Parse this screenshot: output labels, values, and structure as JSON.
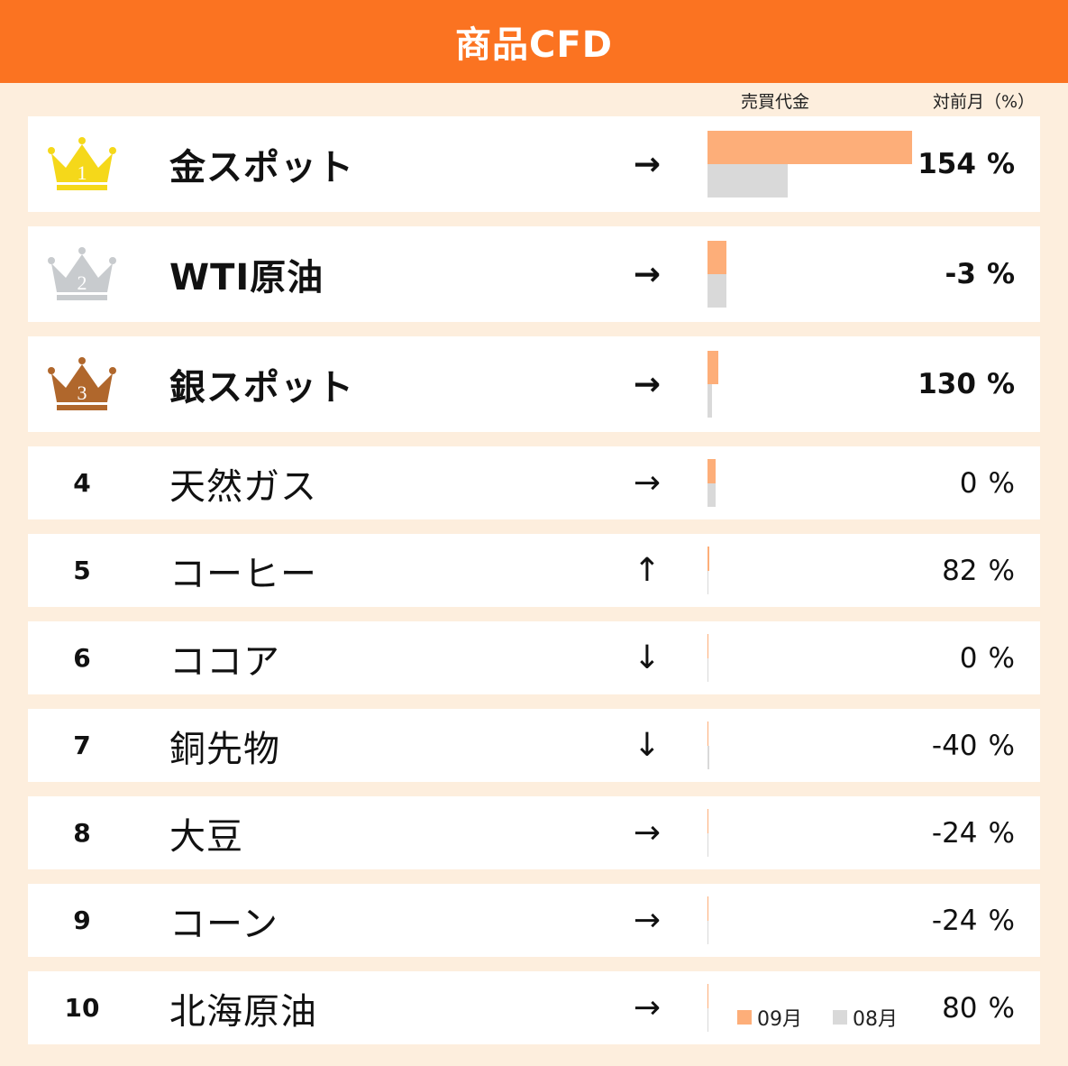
{
  "header": {
    "title": "商品CFD"
  },
  "columns": {
    "volume": "売買代金",
    "change": "対前月（%）"
  },
  "legend": {
    "current": "09月",
    "previous": "08月"
  },
  "colors": {
    "header": "#fb7321",
    "current_bar": "#fdae79",
    "previous_bar": "#d9d9d9",
    "gold": "#f5d81a",
    "silver": "#c8cbce",
    "bronze": "#b0672c"
  },
  "unit": "%",
  "rows": [
    {
      "rank": "1",
      "crown": "gold",
      "name": "金スポット",
      "arrow": "→",
      "change": "154"
    },
    {
      "rank": "2",
      "crown": "silver",
      "name": "WTI原油",
      "arrow": "→",
      "change": "-3"
    },
    {
      "rank": "3",
      "crown": "bronze",
      "name": "銀スポット",
      "arrow": "→",
      "change": "130"
    },
    {
      "rank": "4",
      "name": "天然ガス",
      "arrow": "→",
      "change": "0"
    },
    {
      "rank": "5",
      "name": "コーヒー",
      "arrow": "↑",
      "change": "82"
    },
    {
      "rank": "6",
      "name": "ココア",
      "arrow": "↓",
      "change": "0"
    },
    {
      "rank": "7",
      "name": "銅先物",
      "arrow": "↓",
      "change": "-40"
    },
    {
      "rank": "8",
      "name": "大豆",
      "arrow": "→",
      "change": "-24"
    },
    {
      "rank": "9",
      "name": "コーン",
      "arrow": "→",
      "change": "-24"
    },
    {
      "rank": "10",
      "name": "北海原油",
      "arrow": "→",
      "change": "80"
    }
  ],
  "chart_data": {
    "type": "bar",
    "categories": [
      "金スポット",
      "WTI原油",
      "銀スポット",
      "天然ガス",
      "コーヒー",
      "ココア",
      "銅先物",
      "大豆",
      "コーン",
      "北海原油"
    ],
    "series": [
      {
        "name": "09月",
        "values": [
          100,
          9.1,
          5.1,
          4.0,
          0.8,
          0.5,
          0.5,
          0.4,
          0.4,
          0.4
        ]
      },
      {
        "name": "08月",
        "values": [
          39.4,
          9.4,
          2.2,
          4.0,
          0.5,
          0.5,
          0.8,
          0.5,
          0.5,
          0.2
        ]
      }
    ],
    "value_label": "売買代金",
    "change_pct": [
      154,
      -3,
      130,
      0,
      82,
      0,
      -40,
      -24,
      -24,
      80
    ],
    "legend_position": "bottom-right"
  }
}
